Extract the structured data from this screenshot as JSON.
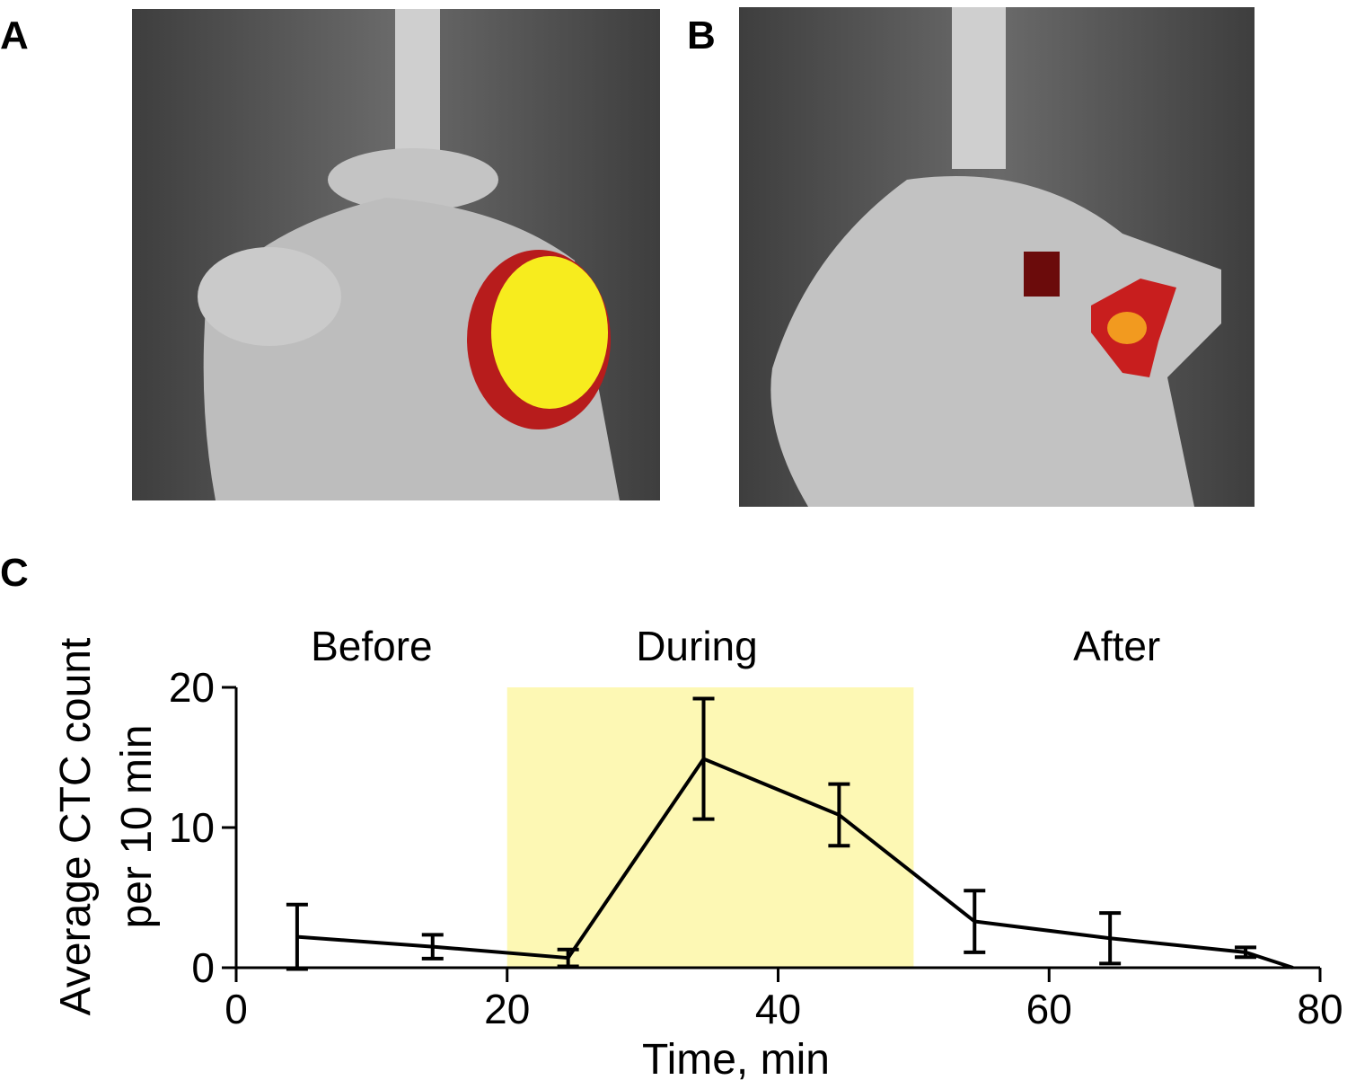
{
  "panel_labels": [
    "A",
    "B",
    "C"
  ],
  "chart_data": {
    "type": "line",
    "xlabel": "Time, min",
    "ylabel": [
      "Average CTC count",
      "per 10 min"
    ],
    "x": [
      4.5,
      14.5,
      24.5,
      34.5,
      44.5,
      54.5,
      64.5,
      74.5,
      78
    ],
    "series": [
      {
        "color": "#000000",
        "values": [
          2.2,
          1.5,
          0.7,
          14.9,
          10.9,
          3.3,
          2.1,
          1.1,
          0
        ],
        "errors": [
          2.3,
          0.85,
          0.6,
          4.3,
          2.2,
          2.2,
          1.8,
          0.35,
          null
        ]
      }
    ],
    "xlim": [
      0,
      80
    ],
    "xticks": [
      0,
      20,
      40,
      60,
      80
    ],
    "ylim": [
      0,
      20
    ],
    "yticks": [
      0,
      10,
      20
    ],
    "shaded_region": {
      "x": [
        20,
        50
      ],
      "color": "#fdf8b4"
    },
    "annotations": [
      {
        "text": "Before",
        "x": 10
      },
      {
        "text": "During",
        "x": 34
      },
      {
        "text": "After",
        "x": 65
      }
    ]
  }
}
